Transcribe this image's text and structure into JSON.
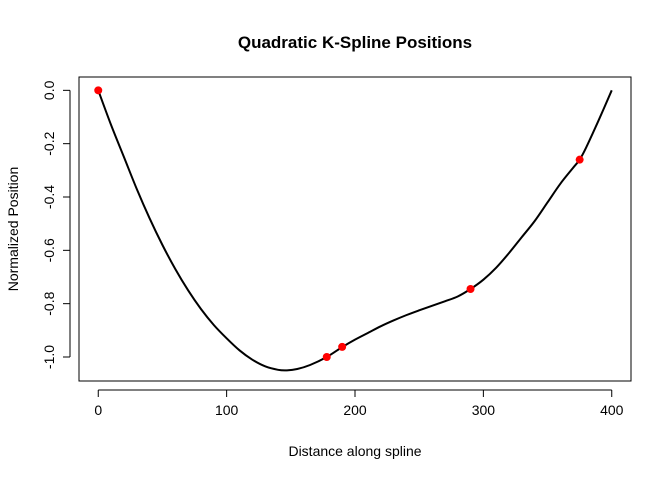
{
  "chart_data": {
    "type": "line",
    "title": "Quadratic K-Spline Positions",
    "xlabel": "Distance along spline",
    "ylabel": "Normalized Position",
    "xlim": [
      -15,
      415
    ],
    "ylim": [
      -1.09,
      0.05
    ],
    "x_ticks": [
      0,
      100,
      200,
      300,
      400
    ],
    "x_tick_labels": [
      "0",
      "100",
      "200",
      "300",
      "400"
    ],
    "y_ticks": [
      0.0,
      -0.2,
      -0.4,
      -0.6,
      -0.8,
      -1.0
    ],
    "y_tick_labels": [
      "0.0",
      "-0.2",
      "-0.4",
      "-0.6",
      "-0.8",
      "-1.0"
    ],
    "grid": false,
    "legend": "none",
    "curve_color": "#000000",
    "point_color": "#ff0000",
    "curve": {
      "x": [
        0,
        10,
        20,
        30,
        40,
        50,
        60,
        70,
        80,
        90,
        100,
        110,
        120,
        130,
        140,
        147,
        155,
        165,
        178,
        190,
        200,
        210,
        220,
        230,
        240,
        250,
        260,
        270,
        280,
        290,
        300,
        310,
        320,
        330,
        340,
        350,
        360,
        370,
        375,
        380,
        390,
        400
      ],
      "y": [
        0.0,
        -0.13,
        -0.25,
        -0.37,
        -0.48,
        -0.58,
        -0.67,
        -0.75,
        -0.82,
        -0.88,
        -0.93,
        -0.975,
        -1.01,
        -1.035,
        -1.048,
        -1.05,
        -1.045,
        -1.03,
        -1.0,
        -0.963,
        -0.935,
        -0.91,
        -0.885,
        -0.863,
        -0.843,
        -0.825,
        -0.808,
        -0.791,
        -0.773,
        -0.745,
        -0.71,
        -0.665,
        -0.61,
        -0.55,
        -0.49,
        -0.42,
        -0.35,
        -0.29,
        -0.26,
        -0.215,
        -0.11,
        0.0
      ]
    },
    "points": {
      "x": [
        0,
        178,
        190,
        290,
        375
      ],
      "y": [
        0.0,
        -1.0,
        -0.962,
        -0.745,
        -0.26
      ]
    }
  }
}
